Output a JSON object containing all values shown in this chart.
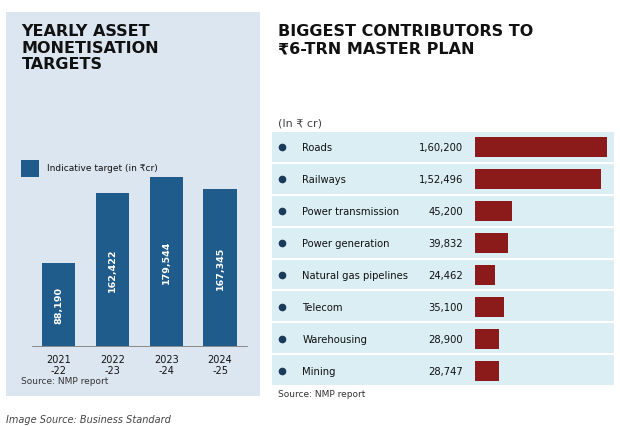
{
  "left_title": "YEARLY ASSET\nMONETISATION\nTARGETS",
  "left_bg_color": "#dce6f0",
  "bar_color": "#1f5c8b",
  "bar_categories": [
    "2021\n-22",
    "2022\n-23",
    "2023\n-24",
    "2024\n-25"
  ],
  "bar_values": [
    88190,
    162422,
    179544,
    167345
  ],
  "bar_labels": [
    "88,190",
    "162,422",
    "179,544",
    "167,345"
  ],
  "legend_label": "Indicative target (in ₹cr)",
  "left_source": "Source: NMP report",
  "right_title": "BIGGEST CONTRIBUTORS TO\n₹6-TRN MASTER PLAN",
  "right_subtitle": "(In ₹ cr)",
  "right_bg_color": "#ffffff",
  "right_row_bg": "#daeef3",
  "contributors": [
    "Roads",
    "Railways",
    "Power transmission",
    "Power generation",
    "Natural gas pipelines",
    "Telecom",
    "Warehousing",
    "Mining"
  ],
  "contributor_values": [
    160200,
    152496,
    45200,
    39832,
    24462,
    35100,
    28900,
    28747
  ],
  "contributor_labels": [
    "1,60,200",
    "1,52,496",
    "45,200",
    "39,832",
    "24,462",
    "35,100",
    "28,900",
    "28,747"
  ],
  "bar_color_right": "#8b1a1a",
  "right_source": "Source: NMP report",
  "image_source": "Image Source: Business Standard",
  "bullet_color": "#1a3a5c"
}
